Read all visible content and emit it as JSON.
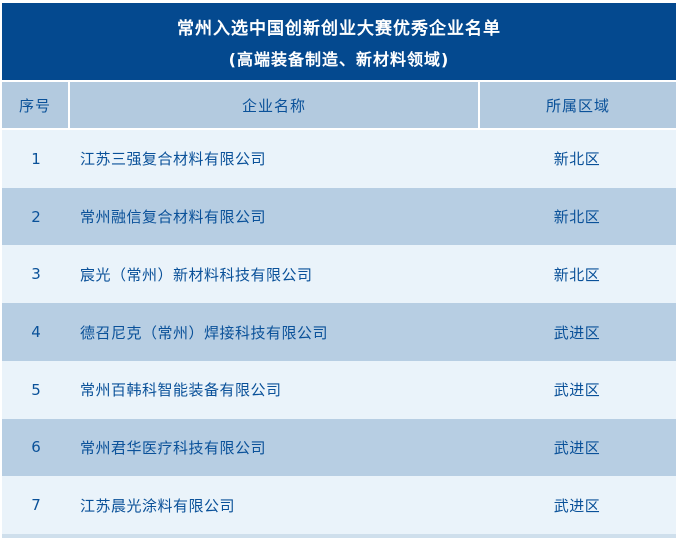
{
  "colors": {
    "title_bg": "#04498f",
    "title_text": "#ffffff",
    "header_bg": "#b3cadf",
    "row_light": "#eaf3fa",
    "row_dark": "#b7cee3",
    "text_blue": "#0a5199"
  },
  "chart_data": {
    "type": "table",
    "title": "常州入选中国创新创业大赛优秀企业名单",
    "subtitle": "(高端装备制造、新材料领域)",
    "columns": [
      "序号",
      "企业名称",
      "所属区域"
    ],
    "rows": [
      [
        "1",
        "江苏三强复合材料有限公司",
        "新北区"
      ],
      [
        "2",
        "常州融信复合材料有限公司",
        "新北区"
      ],
      [
        "3",
        "宸光（常州）新材料科技有限公司",
        "新北区"
      ],
      [
        "4",
        "德召尼克（常州）焊接科技有限公司",
        "武进区"
      ],
      [
        "5",
        "常州百韩科智能装备有限公司",
        "武进区"
      ],
      [
        "6",
        "常州君华医疗科技有限公司",
        "武进区"
      ],
      [
        "7",
        "江苏晨光涂料有限公司",
        "武进区"
      ]
    ]
  }
}
